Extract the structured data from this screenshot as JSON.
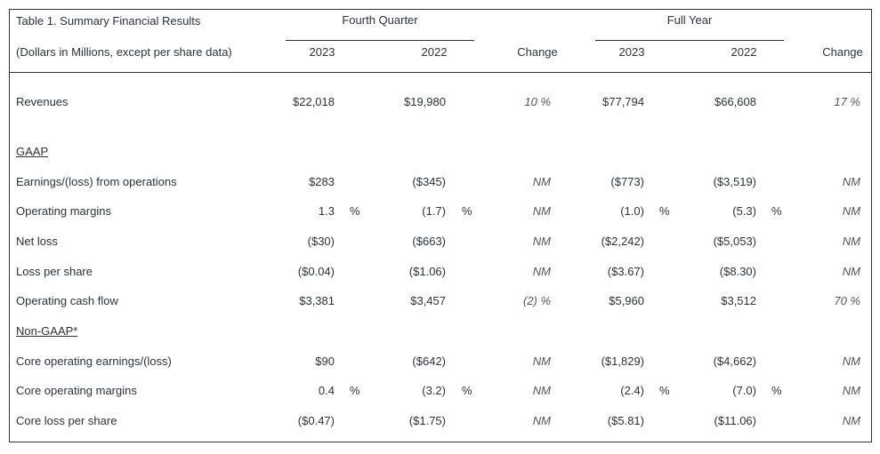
{
  "table": {
    "title": "Table 1. Summary Financial Results",
    "subtitle": "(Dollars in Millions, except per share data)",
    "groups": [
      "Fourth Quarter",
      "Full Year"
    ],
    "columns": [
      "2023",
      "2022",
      "Change",
      "2023",
      "2022",
      "Change"
    ],
    "rows": [
      {
        "label": "Revenues",
        "cells": [
          "$22,018",
          "$19,980",
          "10 %",
          "$77,794",
          "$66,608",
          "17 %"
        ]
      },
      {
        "heading": "GAAP"
      },
      {
        "label": "Earnings/(loss) from operations",
        "cells": [
          "$283",
          "($345)",
          "NM",
          "($773)",
          "($3,519)",
          "NM"
        ]
      },
      {
        "label": "Operating margins",
        "cells": [
          {
            "text": "1.3",
            "unit": "%"
          },
          {
            "text": "(1.7)",
            "unit": "%"
          },
          "NM",
          {
            "text": "(1.0)",
            "unit": "%"
          },
          {
            "text": "(5.3)",
            "unit": "%"
          },
          "NM"
        ]
      },
      {
        "label": "Net loss",
        "cells": [
          "($30)",
          "($663)",
          "NM",
          "($2,242)",
          "($5,053)",
          "NM"
        ]
      },
      {
        "label": "Loss per share",
        "cells": [
          "($0.04)",
          "($1.06)",
          "NM",
          "($3.67)",
          "($8.30)",
          "NM"
        ]
      },
      {
        "label": "Operating cash flow",
        "cells": [
          "$3,381",
          "$3,457",
          "(2) %",
          "$5,960",
          "$3,512",
          "70 %"
        ]
      },
      {
        "heading": "Non-GAAP*"
      },
      {
        "label": "Core operating earnings/(loss)",
        "cells": [
          "$90",
          "($642)",
          "NM",
          "($1,829)",
          "($4,662)",
          "NM"
        ]
      },
      {
        "label": "Core operating margins",
        "cells": [
          {
            "text": "0.4",
            "unit": "%"
          },
          {
            "text": "(3.2)",
            "unit": "%"
          },
          "NM",
          {
            "text": "(2.4)",
            "unit": "%"
          },
          {
            "text": "(7.0)",
            "unit": "%"
          },
          "NM"
        ]
      },
      {
        "label": "Core loss per share",
        "cells": [
          "($0.47)",
          "($1.75)",
          "NM",
          "($5.81)",
          "($11.06)",
          "NM"
        ]
      }
    ]
  }
}
